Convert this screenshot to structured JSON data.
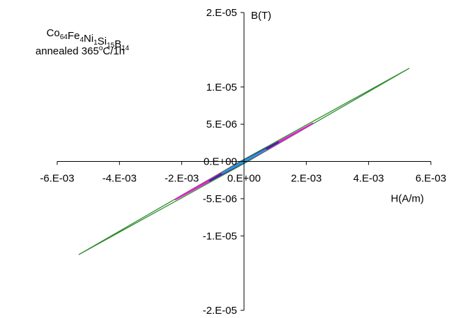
{
  "chart_data": {
    "type": "line",
    "annotation": {
      "formula": [
        {
          "text": "Co",
          "sub": "64"
        },
        {
          "text": "Fe",
          "sub": "4"
        },
        {
          "text": "Ni",
          "sub": "1"
        },
        {
          "text": "Si",
          "sub": "15"
        },
        {
          "text": "B",
          "sub": "14"
        }
      ],
      "line2_prefix": "annealed 365",
      "line2_degree": "o",
      "line2_suffix": "C/1h"
    },
    "xlabel": "H(A/m)",
    "ylabel": "B(T)",
    "xlim": [
      -0.006,
      0.006
    ],
    "ylim": [
      -2e-05,
      2e-05
    ],
    "x_ticks": [
      -0.006,
      -0.004,
      -0.002,
      0.0,
      0.002,
      0.004,
      0.006
    ],
    "x_tick_labels": [
      "-6.E-03",
      "-4.E-03",
      "-2.E-03",
      "0.E+00",
      "2.E-03",
      "4.E-03",
      "6.E-03"
    ],
    "y_ticks": [
      2e-05,
      1e-05,
      5e-06,
      0.0,
      -5e-06,
      -1e-05,
      -2e-05
    ],
    "y_tick_labels": [
      "2.E-05",
      "1.E-05",
      "5.E-06",
      "0.E+00",
      "-5.E-06",
      "-1.E-05",
      "-2.E-05"
    ],
    "grid": false,
    "series": [
      {
        "color": "#2e8b2e",
        "points": [
          [
            -0.0053,
            -1.25e-05
          ],
          [
            0.0053,
            1.25e-05
          ]
        ],
        "width": 0.00012
      },
      {
        "color": "#e21fd0",
        "points": [
          [
            -0.0022,
            -5.1e-06
          ],
          [
            0.0022,
            5.1e-06
          ]
        ],
        "width": 6e-05
      },
      {
        "color": "#3b1fa8",
        "points": [
          [
            -0.0011,
            -2.6e-06
          ],
          [
            0.0011,
            2.6e-06
          ]
        ],
        "width": 5e-05
      },
      {
        "color": "#1aa0d8",
        "points": [
          [
            -0.0007,
            -1.6e-06
          ],
          [
            0.0007,
            1.6e-06
          ]
        ],
        "width": 3e-05
      }
    ]
  }
}
